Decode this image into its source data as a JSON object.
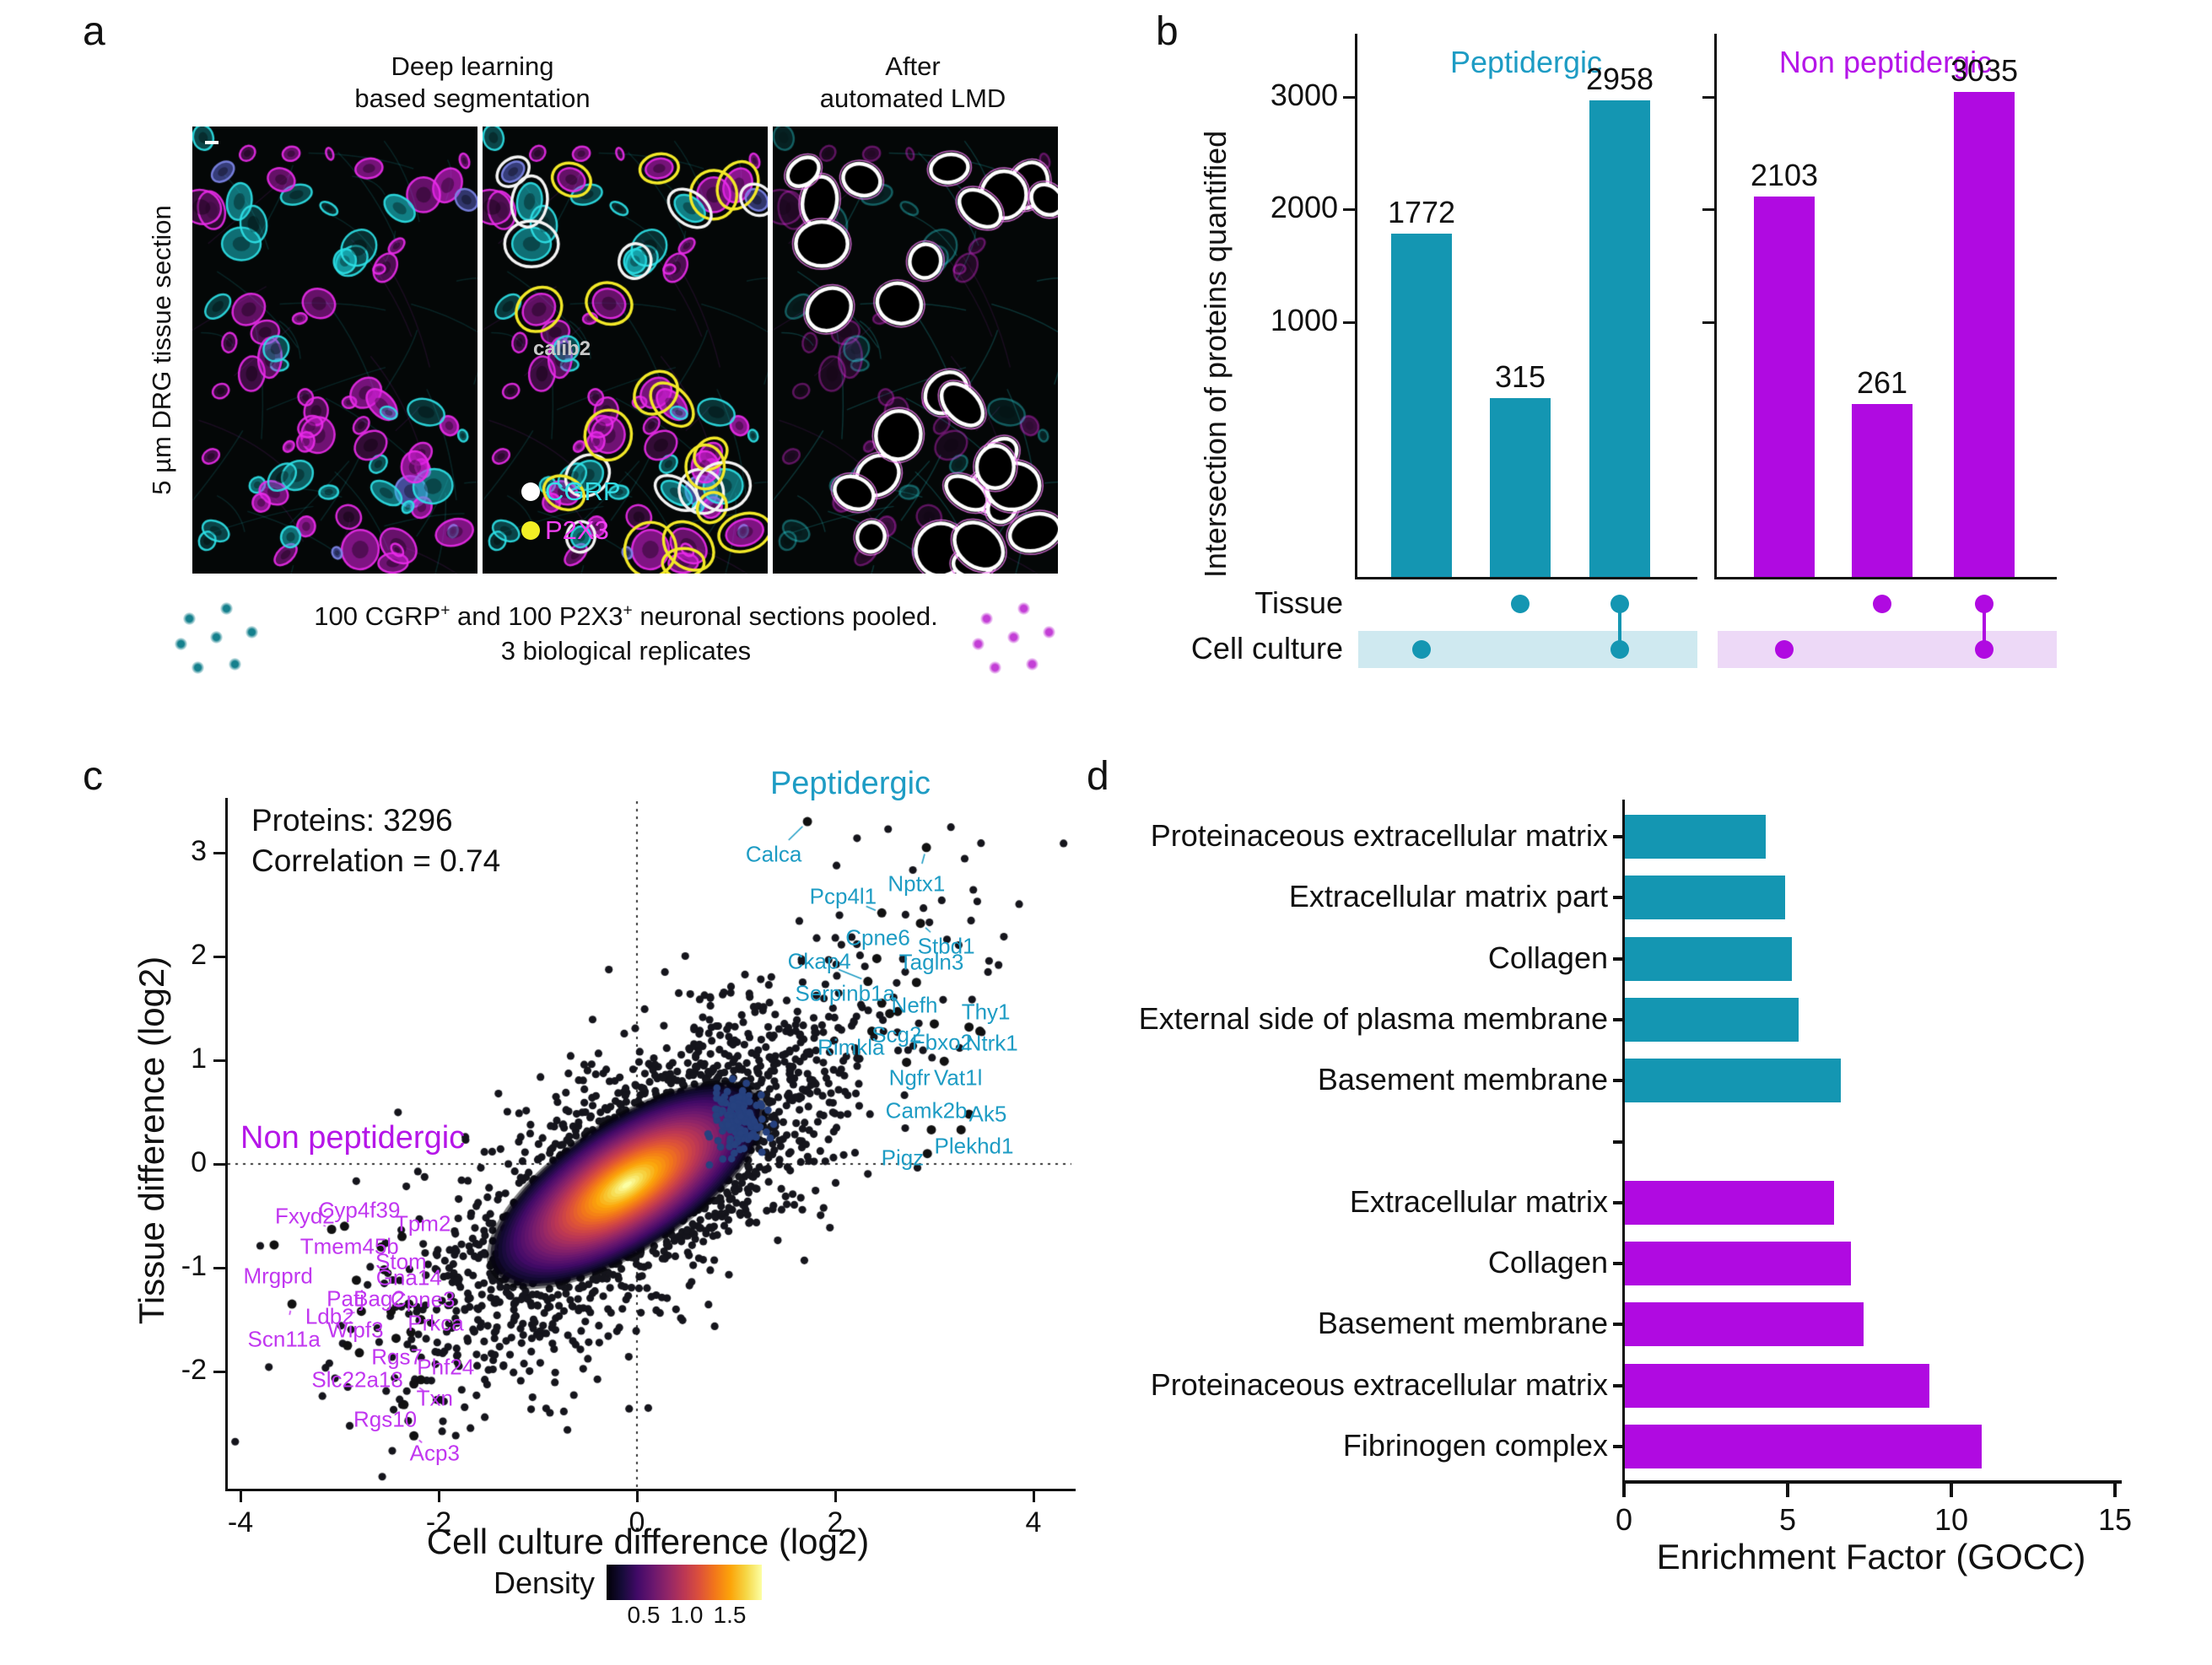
{
  "panels": {
    "a": {
      "label": "a",
      "col_title_1_line1": "Deep learning",
      "col_title_1_line2": "based segmentation",
      "col_title_2_line1": "After",
      "col_title_2_line2": "automated LMD",
      "row_label": "5 µm DRG tissue section",
      "overlay_tag": "calib2",
      "legend": [
        {
          "label": "CGRP",
          "label_color": "#35dfe8",
          "marker_color": "#ffffff"
        },
        {
          "label": "P2X3",
          "label_color": "#f440f4",
          "marker_color": "#f2ee25"
        }
      ],
      "pooled_note": {
        "p1": "100 CGRP",
        "s1": "+",
        "p2": " and 100 P2X3",
        "s2": "+",
        "p3": " neuronal sections pooled.",
        "line2": "3 biological replicates"
      },
      "cluster_left_color": "#15808d",
      "cluster_right_color": "#c33fd6"
    },
    "b": {
      "label": "b"
    },
    "c": {
      "label": "c"
    },
    "d": {
      "label": "d"
    }
  },
  "chart_data": [
    {
      "id": "upset_peptidergic",
      "type": "bar",
      "title": "Peptidergic",
      "title_color": "#1e9cc4",
      "bar_color": "#1496b2",
      "band_color": "#cfe9f0",
      "ylabel": "Intersection of proteins quantified",
      "yticks": [
        1000,
        2000,
        3000
      ],
      "set_rows": [
        "Tissue",
        "Cell culture"
      ],
      "categories": [
        [
          "cell_culture"
        ],
        [
          "tissue"
        ],
        [
          "tissue",
          "cell_culture"
        ]
      ],
      "values": [
        1772,
        315,
        2958
      ]
    },
    {
      "id": "upset_non_peptidergic",
      "type": "bar",
      "title": "Non peptidergic",
      "title_color": "#b516e8",
      "bar_color": "#b00ae1",
      "band_color": "#edd9f7",
      "yticks": [
        1000,
        2000,
        3000
      ],
      "categories": [
        [
          "cell_culture"
        ],
        [
          "tissue"
        ],
        [
          "tissue",
          "cell_culture"
        ]
      ],
      "values": [
        2103,
        261,
        3035
      ]
    },
    {
      "id": "scatter_density",
      "type": "scatter",
      "title": "Peptidergic",
      "title_color": "#1e9cc4",
      "subtitle": "Non peptidergic",
      "subtitle_color": "#b516e8",
      "stats_line1": "Proteins: 3296",
      "stats_line2": "Correlation = 0.74",
      "xlabel": "Cell culture difference (log2)",
      "ylabel": "Tissue difference (log2)",
      "xlim": [
        -4.1,
        4.4
      ],
      "ylim": [
        -3.1,
        3.5
      ],
      "xticks": [
        -4,
        -2,
        0,
        2,
        4
      ],
      "yticks": [
        3,
        2,
        1,
        0,
        -1,
        -2
      ],
      "zero_lines": true,
      "density_legend": {
        "label": "Density",
        "tick_labels": [
          "0.5",
          "1.0",
          "1.5"
        ]
      },
      "cloud": {
        "n_core": 1900,
        "n_halo": 380,
        "center": [
          0.0,
          -0.15
        ],
        "sd": [
          1.0,
          0.8
        ],
        "correlation": 0.74
      },
      "sub_cluster": {
        "center": [
          1.02,
          0.42
        ],
        "sd": [
          0.13,
          0.15
        ],
        "n": 150,
        "color": "#26417f"
      },
      "labeled_points": [
        {
          "group": "peptidergic",
          "color": "#1e9cc4",
          "genes": [
            {
              "name": "Calca",
              "x": 1.72,
              "y": 3.3,
              "lx": 1.38,
              "ly": 2.98
            },
            {
              "name": "Nptx1",
              "x": 2.92,
              "y": 3.05,
              "lx": 2.82,
              "ly": 2.7
            },
            {
              "name": "Pcp4l1",
              "x": 2.47,
              "y": 2.42,
              "lx": 2.08,
              "ly": 2.58
            },
            {
              "name": "Stbd1",
              "x": 2.86,
              "y": 2.32,
              "lx": 3.12,
              "ly": 2.1
            },
            {
              "name": "Cpne6",
              "x": 2.42,
              "y": 1.98,
              "lx": 2.43,
              "ly": 2.18
            },
            {
              "name": "Ckap4",
              "x": 2.33,
              "y": 1.76,
              "lx": 1.84,
              "ly": 1.95
            },
            {
              "name": "Tagln3",
              "x": 2.82,
              "y": 1.75,
              "lx": 2.97,
              "ly": 1.94
            },
            {
              "name": "Serpinb1a",
              "x": 2.47,
              "y": 1.55,
              "lx": 2.1,
              "ly": 1.64
            },
            {
              "name": "Nefh",
              "x": 2.63,
              "y": 1.47,
              "lx": 2.8,
              "ly": 1.53
            },
            {
              "name": "Thy1",
              "x": 3.35,
              "y": 1.32,
              "lx": 3.52,
              "ly": 1.46
            },
            {
              "name": "Scg2",
              "x": 2.55,
              "y": 1.45,
              "lx": 2.62,
              "ly": 1.24
            },
            {
              "name": "Fbxo2",
              "x": 3.0,
              "y": 1.35,
              "lx": 3.08,
              "ly": 1.17
            },
            {
              "name": "Ntrk1",
              "x": 3.46,
              "y": 1.28,
              "lx": 3.58,
              "ly": 1.16
            },
            {
              "name": "Rimkla",
              "x": 2.37,
              "y": 1.28,
              "lx": 2.16,
              "ly": 1.12
            },
            {
              "name": "Ngfr",
              "x": 2.72,
              "y": 0.98,
              "lx": 2.75,
              "ly": 0.83
            },
            {
              "name": "Vat1l",
              "x": 3.1,
              "y": 0.99,
              "lx": 3.24,
              "ly": 0.83
            },
            {
              "name": "Camk2b",
              "x": 2.97,
              "y": 0.33,
              "lx": 2.92,
              "ly": 0.51
            },
            {
              "name": "Ak5",
              "x": 3.35,
              "y": 0.48,
              "lx": 3.54,
              "ly": 0.48
            },
            {
              "name": "Plekhd1",
              "x": 3.27,
              "y": 0.33,
              "lx": 3.4,
              "ly": 0.17
            },
            {
              "name": "Pigz",
              "x": 2.93,
              "y": 0.1,
              "lx": 2.68,
              "ly": 0.06
            }
          ]
        },
        {
          "group": "non_peptidergic",
          "color": "#c137f0",
          "genes": [
            {
              "name": "Fxyd2",
              "x": -3.08,
              "y": -0.63,
              "lx": -3.35,
              "ly": -0.5
            },
            {
              "name": "Cyp4f39",
              "x": -2.95,
              "y": -0.6,
              "lx": -2.8,
              "ly": -0.45
            },
            {
              "name": "Tpm2",
              "x": -2.37,
              "y": -0.7,
              "lx": -2.16,
              "ly": -0.58
            },
            {
              "name": "Tmem45b",
              "x": -2.58,
              "y": -0.8,
              "lx": -2.9,
              "ly": -0.8
            },
            {
              "name": "Stom",
              "x": -2.55,
              "y": -1.02,
              "lx": -2.38,
              "ly": -0.94
            },
            {
              "name": "Mrgprd",
              "x": -3.66,
              "y": -0.78,
              "lx": -3.62,
              "ly": -1.08
            },
            {
              "name": "Gna14",
              "x": -2.3,
              "y": -1.35,
              "lx": -2.3,
              "ly": -1.1
            },
            {
              "name": "Patj",
              "x": -2.83,
              "y": -1.12,
              "lx": -2.94,
              "ly": -1.3
            },
            {
              "name": "Bag2",
              "x": -2.48,
              "y": -1.42,
              "lx": -2.6,
              "ly": -1.3
            },
            {
              "name": "Cpne3",
              "x": -2.18,
              "y": -1.5,
              "lx": -2.16,
              "ly": -1.31
            },
            {
              "name": "Ldb2",
              "x": -2.78,
              "y": -1.42,
              "lx": -3.1,
              "ly": -1.47
            },
            {
              "name": "Prkca",
              "x": -2.28,
              "y": -1.62,
              "lx": -2.03,
              "ly": -1.54
            },
            {
              "name": "Wipf3",
              "x": -2.92,
              "y": -1.75,
              "lx": -2.84,
              "ly": -1.6
            },
            {
              "name": "Scn11a",
              "x": -3.48,
              "y": -1.35,
              "lx": -3.56,
              "ly": -1.69
            },
            {
              "name": "Rgs7",
              "x": -2.43,
              "y": -1.68,
              "lx": -2.42,
              "ly": -1.86
            },
            {
              "name": "Slc22a18",
              "x": -2.8,
              "y": -1.82,
              "lx": -2.82,
              "ly": -2.08
            },
            {
              "name": "Phf24",
              "x": -2.18,
              "y": -2.08,
              "lx": -1.93,
              "ly": -1.96
            },
            {
              "name": "Txn",
              "x": -2.25,
              "y": -2.12,
              "lx": -2.04,
              "ly": -2.26
            },
            {
              "name": "Rgs10",
              "x": -2.35,
              "y": -2.32,
              "lx": -2.54,
              "ly": -2.46
            },
            {
              "name": "Acp3",
              "x": -2.25,
              "y": -2.62,
              "lx": -2.04,
              "ly": -2.79
            }
          ]
        }
      ]
    },
    {
      "id": "gocc_enrichment",
      "type": "bar-h",
      "xlabel": "Enrichment Factor (GOCC)",
      "xticks": [
        0,
        5,
        10,
        15
      ],
      "xlim": [
        0,
        15
      ],
      "groups": [
        {
          "name": "peptidergic",
          "color": "#1496b2",
          "items": [
            {
              "label": "Proteinaceous extracellular matrix",
              "value": 4.3
            },
            {
              "label": "Extracellular matrix part",
              "value": 4.9
            },
            {
              "label": "Collagen",
              "value": 5.1
            },
            {
              "label": "External side of plasma membrane",
              "value": 5.3
            },
            {
              "label": "Basement membrane",
              "value": 6.6
            }
          ]
        },
        {
          "name": "non_peptidergic",
          "color": "#b00ae1",
          "items": [
            {
              "label": "Extracellular matrix",
              "value": 6.4
            },
            {
              "label": "Collagen",
              "value": 6.9
            },
            {
              "label": "Basement membrane",
              "value": 7.3
            },
            {
              "label": "Proteinaceous extracellular matrix",
              "value": 9.3
            },
            {
              "label": "Fibrinogen complex",
              "value": 10.9
            }
          ]
        }
      ]
    }
  ]
}
